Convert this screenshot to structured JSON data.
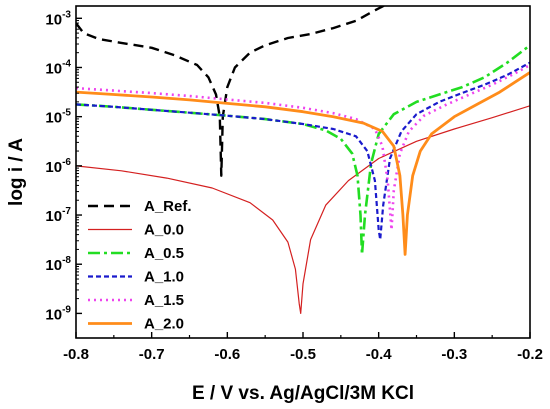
{
  "chart_data": {
    "type": "line",
    "xlabel": "E / V vs. Ag/AgCl/3M KCl",
    "ylabel": "log i / A",
    "xlim": [
      -0.8,
      -0.2
    ],
    "ylim_log10": [
      -9.5,
      -2.75
    ],
    "y_scale": "log",
    "x_ticks": [
      {
        "value": -0.8,
        "label": "-0.8"
      },
      {
        "value": -0.7,
        "label": "-0.7"
      },
      {
        "value": -0.6,
        "label": "-0.6"
      },
      {
        "value": -0.5,
        "label": "-0.5"
      },
      {
        "value": -0.4,
        "label": "-0.4"
      },
      {
        "value": -0.3,
        "label": "-0.3"
      },
      {
        "value": -0.2,
        "label": "-0.2"
      }
    ],
    "y_ticks": [
      {
        "exp": -9,
        "base": "10",
        "sup": "-9"
      },
      {
        "exp": -8,
        "base": "10",
        "sup": "-8"
      },
      {
        "exp": -7,
        "base": "10",
        "sup": "-7"
      },
      {
        "exp": -6,
        "base": "10",
        "sup": "-6"
      },
      {
        "exp": -5,
        "base": "10",
        "sup": "-5"
      },
      {
        "exp": -4,
        "base": "10",
        "sup": "-4"
      },
      {
        "exp": -3,
        "base": "10",
        "sup": "-3"
      }
    ],
    "grid": false,
    "legend_position": "bottom-left",
    "series": [
      {
        "name": "A_Ref.",
        "color": "#000000",
        "dash": "10,6",
        "width": 2.4,
        "points": [
          [
            -0.8,
            -3.1
          ],
          [
            -0.79,
            -3.3
          ],
          [
            -0.77,
            -3.42
          ],
          [
            -0.74,
            -3.5
          ],
          [
            -0.7,
            -3.6
          ],
          [
            -0.67,
            -3.75
          ],
          [
            -0.64,
            -3.95
          ],
          [
            -0.625,
            -4.2
          ],
          [
            -0.615,
            -4.55
          ],
          [
            -0.61,
            -5.0
          ],
          [
            -0.608,
            -6.2
          ],
          [
            -0.606,
            -5.0
          ],
          [
            -0.6,
            -4.4
          ],
          [
            -0.59,
            -4.0
          ],
          [
            -0.57,
            -3.7
          ],
          [
            -0.55,
            -3.55
          ],
          [
            -0.52,
            -3.4
          ],
          [
            -0.49,
            -3.32
          ],
          [
            -0.46,
            -3.2
          ],
          [
            -0.43,
            -3.05
          ],
          [
            -0.41,
            -2.88
          ],
          [
            -0.39,
            -2.72
          ],
          [
            -0.37,
            -2.58
          ],
          [
            -0.34,
            -2.45
          ],
          [
            -0.3,
            -2.35
          ],
          [
            -0.26,
            -2.25
          ],
          [
            -0.22,
            -2.2
          ],
          [
            -0.2,
            -2.15
          ]
        ]
      },
      {
        "name": "A_0.0",
        "color": "#d42020",
        "dash": "",
        "width": 1.2,
        "points": [
          [
            -0.8,
            -6.0
          ],
          [
            -0.74,
            -6.1
          ],
          [
            -0.68,
            -6.25
          ],
          [
            -0.62,
            -6.45
          ],
          [
            -0.57,
            -6.75
          ],
          [
            -0.54,
            -7.1
          ],
          [
            -0.52,
            -7.55
          ],
          [
            -0.51,
            -8.1
          ],
          [
            -0.505,
            -8.8
          ],
          [
            -0.503,
            -9.0
          ],
          [
            -0.5,
            -8.4
          ],
          [
            -0.49,
            -7.5
          ],
          [
            -0.47,
            -6.8
          ],
          [
            -0.44,
            -6.3
          ],
          [
            -0.4,
            -5.85
          ],
          [
            -0.35,
            -5.5
          ],
          [
            -0.3,
            -5.25
          ],
          [
            -0.25,
            -5.02
          ],
          [
            -0.2,
            -4.78
          ]
        ]
      },
      {
        "name": "A_0.5",
        "color": "#22dd22",
        "dash": "12,4,3,4",
        "width": 2.6,
        "points": [
          [
            -0.8,
            -4.75
          ],
          [
            -0.75,
            -4.8
          ],
          [
            -0.7,
            -4.86
          ],
          [
            -0.65,
            -4.92
          ],
          [
            -0.6,
            -4.98
          ],
          [
            -0.55,
            -5.05
          ],
          [
            -0.5,
            -5.15
          ],
          [
            -0.47,
            -5.28
          ],
          [
            -0.45,
            -5.45
          ],
          [
            -0.435,
            -5.75
          ],
          [
            -0.428,
            -6.2
          ],
          [
            -0.424,
            -7.0
          ],
          [
            -0.422,
            -7.8
          ],
          [
            -0.418,
            -7.0
          ],
          [
            -0.41,
            -5.95
          ],
          [
            -0.4,
            -5.35
          ],
          [
            -0.38,
            -4.95
          ],
          [
            -0.35,
            -4.7
          ],
          [
            -0.32,
            -4.55
          ],
          [
            -0.29,
            -4.4
          ],
          [
            -0.26,
            -4.2
          ],
          [
            -0.23,
            -3.9
          ],
          [
            -0.2,
            -3.55
          ]
        ]
      },
      {
        "name": "A_1.0",
        "color": "#1a1acc",
        "dash": "5,3",
        "width": 2.2,
        "points": [
          [
            -0.8,
            -4.75
          ],
          [
            -0.75,
            -4.8
          ],
          [
            -0.7,
            -4.86
          ],
          [
            -0.65,
            -4.92
          ],
          [
            -0.6,
            -4.98
          ],
          [
            -0.55,
            -5.05
          ],
          [
            -0.5,
            -5.15
          ],
          [
            -0.46,
            -5.25
          ],
          [
            -0.43,
            -5.4
          ],
          [
            -0.415,
            -5.7
          ],
          [
            -0.405,
            -6.3
          ],
          [
            -0.4,
            -7.3
          ],
          [
            -0.398,
            -7.5
          ],
          [
            -0.394,
            -6.8
          ],
          [
            -0.385,
            -5.85
          ],
          [
            -0.37,
            -5.3
          ],
          [
            -0.35,
            -4.95
          ],
          [
            -0.32,
            -4.7
          ],
          [
            -0.29,
            -4.52
          ],
          [
            -0.26,
            -4.35
          ],
          [
            -0.23,
            -4.15
          ],
          [
            -0.2,
            -3.9
          ]
        ]
      },
      {
        "name": "A_1.5",
        "color": "#ee44ee",
        "dash": "2,4",
        "width": 2.6,
        "points": [
          [
            -0.8,
            -4.42
          ],
          [
            -0.75,
            -4.47
          ],
          [
            -0.7,
            -4.52
          ],
          [
            -0.65,
            -4.58
          ],
          [
            -0.6,
            -4.65
          ],
          [
            -0.55,
            -4.72
          ],
          [
            -0.5,
            -4.82
          ],
          [
            -0.46,
            -4.93
          ],
          [
            -0.43,
            -5.05
          ],
          [
            -0.405,
            -5.25
          ],
          [
            -0.395,
            -5.6
          ],
          [
            -0.388,
            -6.3
          ],
          [
            -0.383,
            -7.3
          ],
          [
            -0.38,
            -6.5
          ],
          [
            -0.372,
            -5.75
          ],
          [
            -0.36,
            -5.3
          ],
          [
            -0.34,
            -4.98
          ],
          [
            -0.31,
            -4.75
          ],
          [
            -0.28,
            -4.55
          ],
          [
            -0.25,
            -4.35
          ],
          [
            -0.22,
            -4.12
          ],
          [
            -0.2,
            -3.95
          ]
        ]
      },
      {
        "name": "A_2.0",
        "color": "#ff8c1a",
        "dash": "",
        "width": 2.8,
        "points": [
          [
            -0.8,
            -4.5
          ],
          [
            -0.75,
            -4.55
          ],
          [
            -0.7,
            -4.6
          ],
          [
            -0.65,
            -4.66
          ],
          [
            -0.6,
            -4.73
          ],
          [
            -0.55,
            -4.8
          ],
          [
            -0.5,
            -4.9
          ],
          [
            -0.46,
            -5.0
          ],
          [
            -0.42,
            -5.13
          ],
          [
            -0.395,
            -5.3
          ],
          [
            -0.38,
            -5.6
          ],
          [
            -0.372,
            -6.2
          ],
          [
            -0.368,
            -7.0
          ],
          [
            -0.365,
            -7.8
          ],
          [
            -0.362,
            -7.0
          ],
          [
            -0.355,
            -6.2
          ],
          [
            -0.345,
            -5.7
          ],
          [
            -0.33,
            -5.35
          ],
          [
            -0.3,
            -5.0
          ],
          [
            -0.27,
            -4.75
          ],
          [
            -0.24,
            -4.5
          ],
          [
            -0.22,
            -4.3
          ],
          [
            -0.2,
            -4.1
          ]
        ]
      }
    ]
  }
}
